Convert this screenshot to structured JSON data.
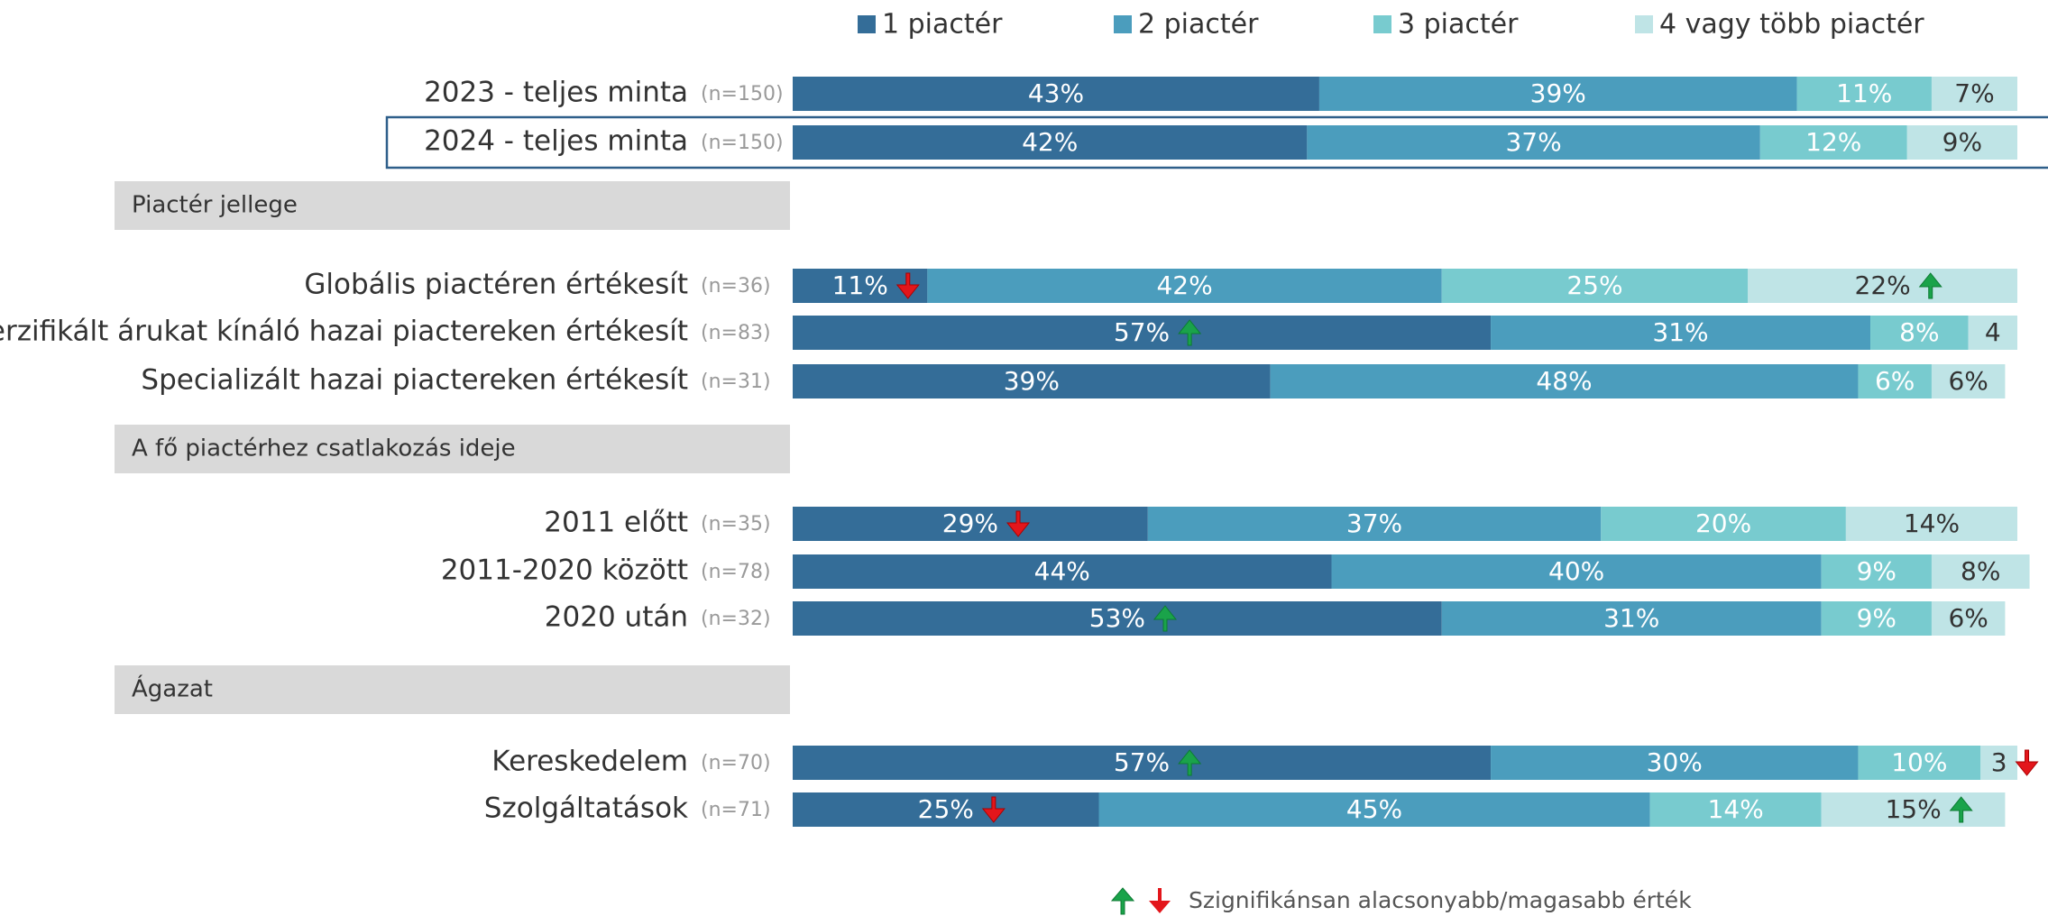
{
  "chart_data": {
    "type": "stacked-bar-horizontal",
    "categories": [
      "2023 - teljes minta",
      "2024 - teljes minta",
      "Globális piactéren értékesít",
      "Diverzifikált árukat kínáló hazai piactereken értékesít",
      "Specializált hazai piactereken értékesít",
      "2011 előtt",
      "2011-2020 között",
      "2020 után",
      "Kereskedelem",
      "Szolgáltatások"
    ],
    "n_labels": [
      "(n=150)",
      "(n=150)",
      "(n=36)",
      "(n=83)",
      "(n=31)",
      "(n=35)",
      "(n=78)",
      "(n=32)",
      "(n=70)",
      "(n=71)"
    ],
    "sections": [
      {
        "title": "Piactér jellege",
        "rows": [
          2,
          3,
          4
        ]
      },
      {
        "title": "A fő piactérhez csatlakozás ideje",
        "rows": [
          5,
          6,
          7
        ]
      },
      {
        "title": "Ágazat",
        "rows": [
          8,
          9
        ]
      }
    ],
    "highlight_row": 1,
    "xlim": [
      0,
      100
    ],
    "series": [
      {
        "name": "1 piactér",
        "color": "#346d98",
        "label_color": "#ffffff",
        "values": [
          43,
          42,
          11,
          57,
          39,
          29,
          44,
          53,
          57,
          25
        ],
        "value_labels": [
          "43%",
          "42%",
          "11%",
          "57%",
          "39%",
          "29%",
          "44%",
          "53%",
          "57%",
          "25%"
        ],
        "markers": [
          null,
          null,
          "down",
          "up",
          null,
          "down",
          null,
          "up",
          "up",
          "down"
        ]
      },
      {
        "name": "2 piactér",
        "color": "#4b9dbd",
        "label_color": "#ffffff",
        "values": [
          39,
          37,
          42,
          31,
          48,
          37,
          40,
          31,
          30,
          45
        ],
        "value_labels": [
          "39%",
          "37%",
          "42%",
          "31%",
          "48%",
          "37%",
          "40%",
          "31%",
          "30%",
          "45%"
        ],
        "markers": [
          null,
          null,
          null,
          null,
          null,
          null,
          null,
          null,
          null,
          null
        ]
      },
      {
        "name": "3 piactér",
        "color": "#78cbcf",
        "label_color": "#ffffff",
        "values": [
          11,
          12,
          25,
          8,
          6,
          20,
          9,
          9,
          10,
          14
        ],
        "value_labels": [
          "11%",
          "12%",
          "25%",
          "8%",
          "6%",
          "20%",
          "9%",
          "9%",
          "10%",
          "14%"
        ],
        "markers": [
          null,
          null,
          null,
          null,
          null,
          null,
          null,
          null,
          null,
          null
        ]
      },
      {
        "name": "4 vagy több piactér",
        "color": "#bfe4e6",
        "label_color": "#333333",
        "values": [
          7,
          9,
          22,
          4,
          6,
          14,
          8,
          6,
          3,
          15
        ],
        "value_labels": [
          "7%",
          "9%",
          "22%",
          "4",
          "6%",
          "14%",
          "8%",
          "6%",
          "3",
          "15%"
        ],
        "markers": [
          null,
          null,
          "up",
          null,
          null,
          null,
          null,
          null,
          "down",
          "up"
        ]
      }
    ],
    "significance_note": "Szignifikánsan alacsonyabb/magasabb érték"
  }
}
